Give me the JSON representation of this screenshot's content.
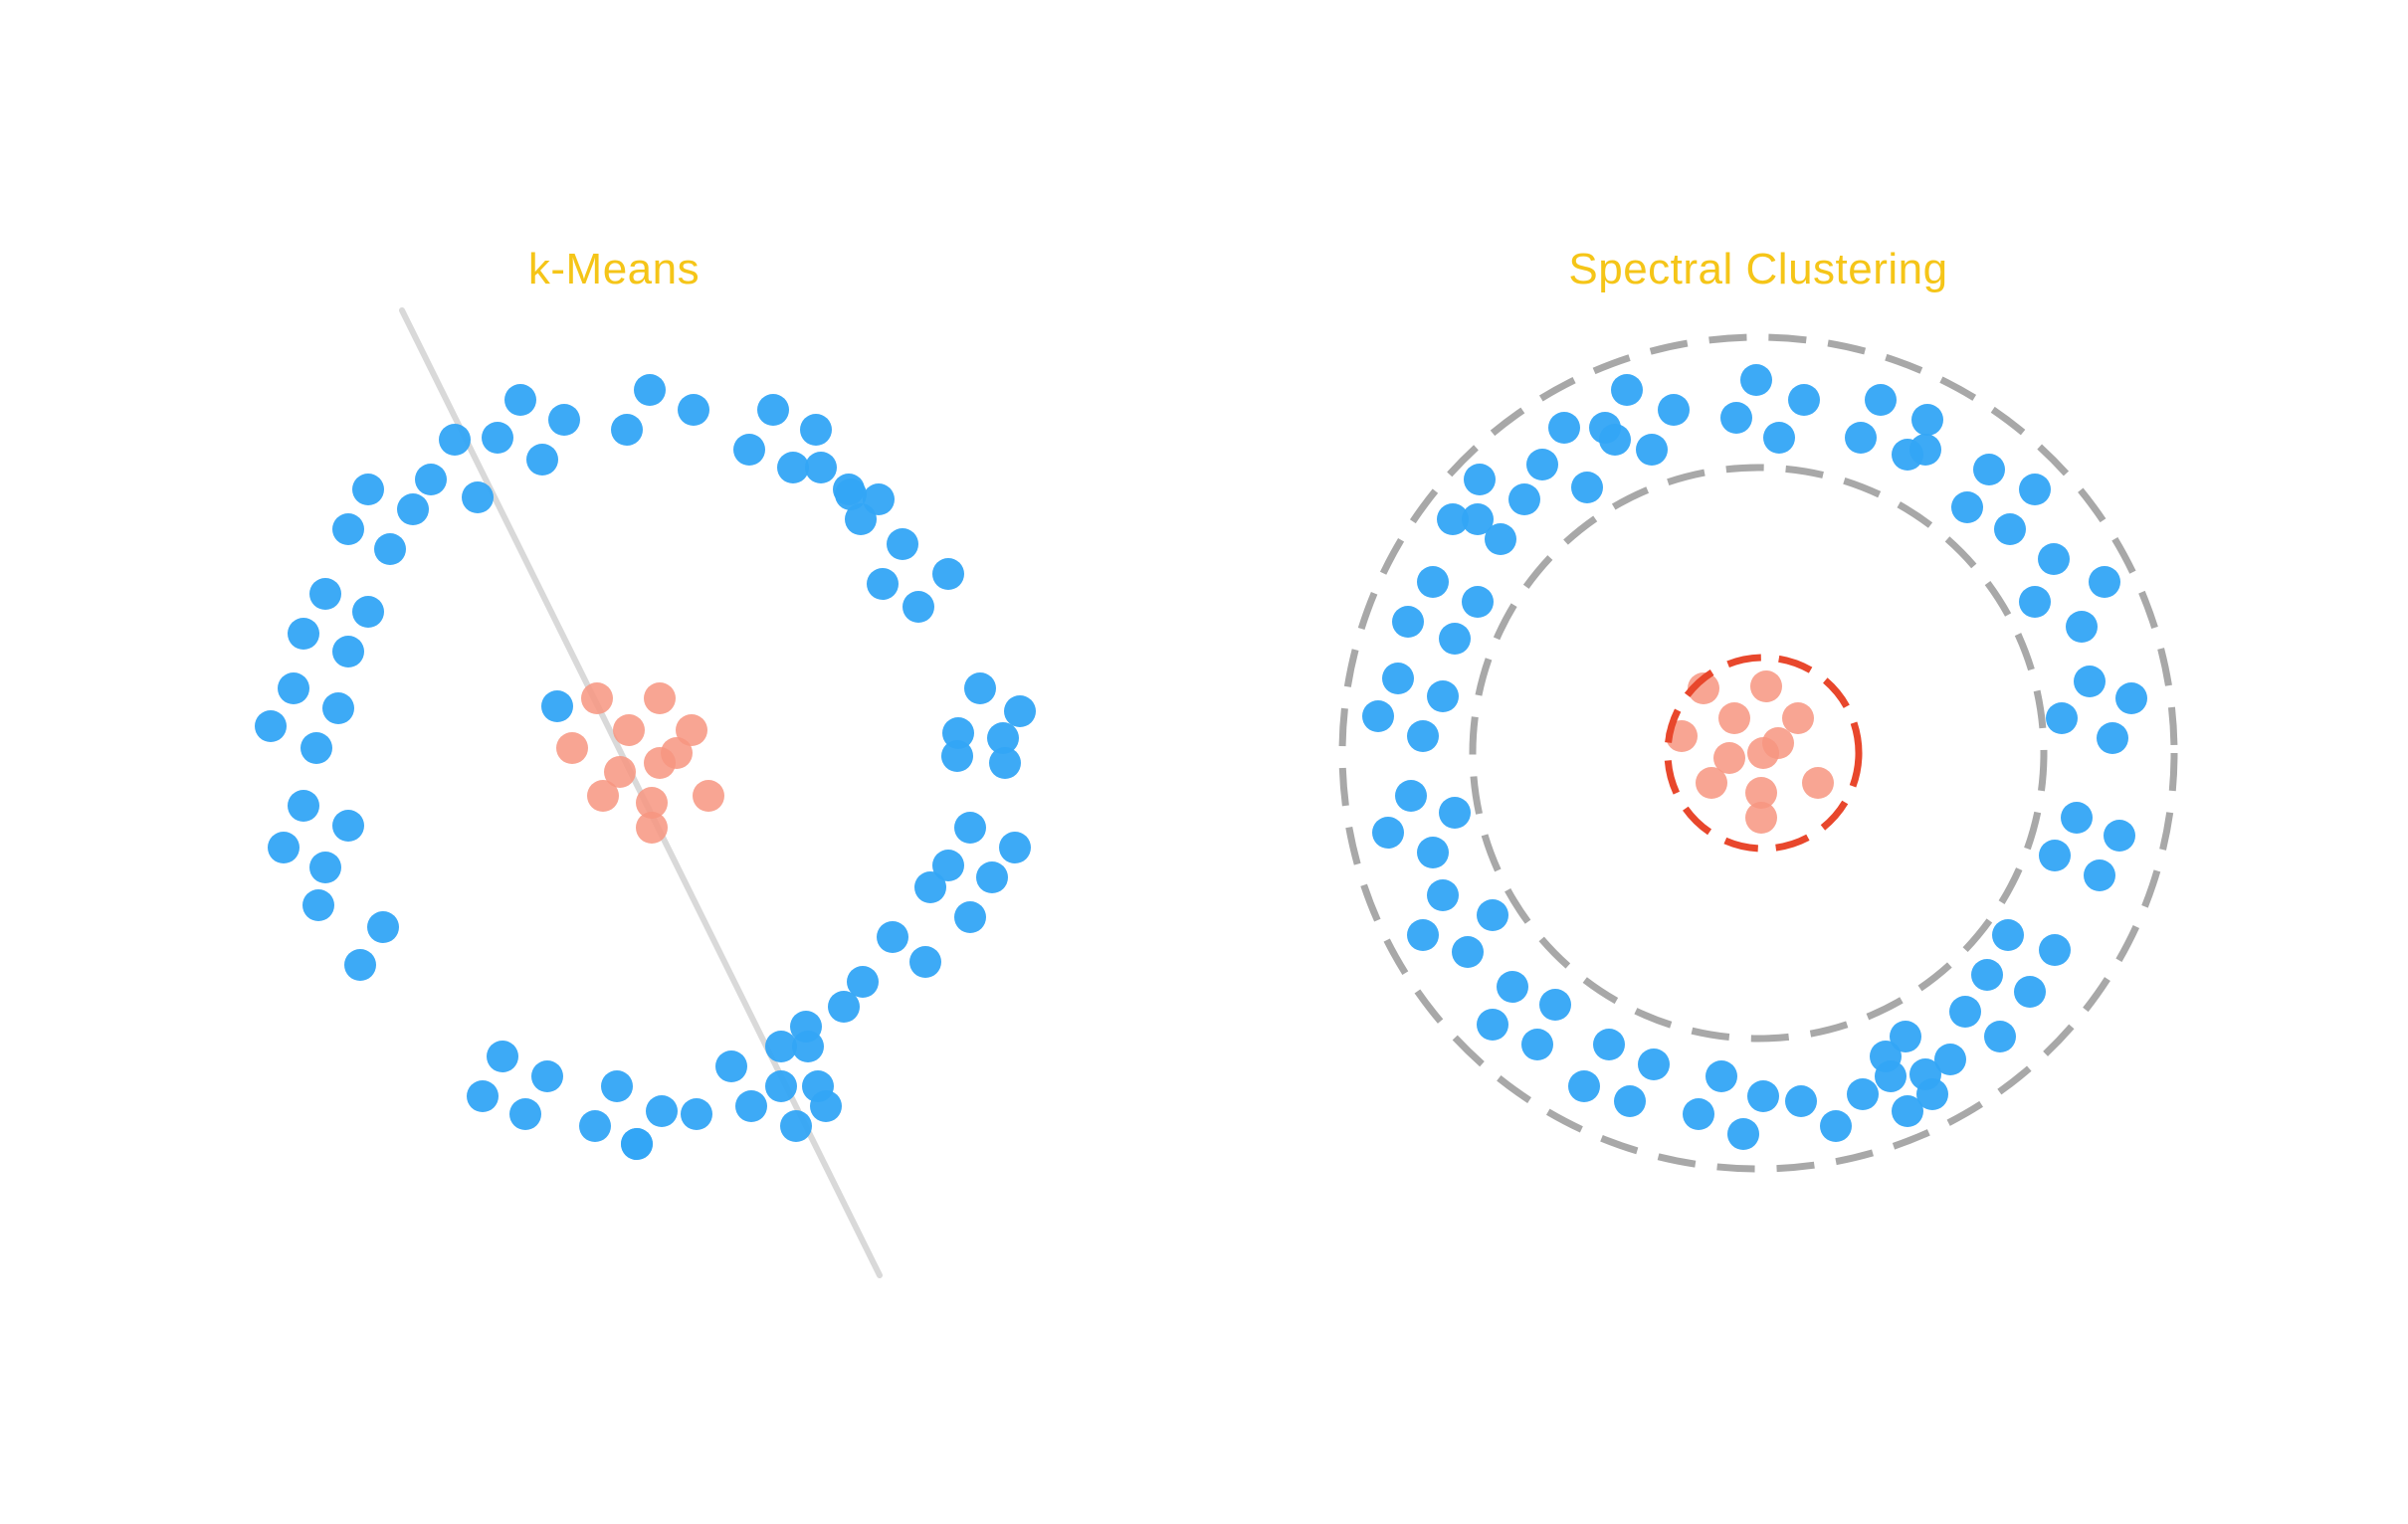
{
  "panels": {
    "left": {
      "title": "k-Means",
      "description": "two concentric point sets split by a straight linear boundary"
    },
    "right": {
      "title": "Spectral Clustering",
      "description": "outer ring and inner blob each enclosed by dashed circular cluster boundaries"
    }
  },
  "colors": {
    "title": "#F5C518",
    "outer_points": "#33A5F5",
    "inner_points": "#F79580",
    "kmeans_boundary": "#D9D9D9",
    "ring_boundary": "#A8A8A8",
    "inner_boundary": "#E8472C",
    "background": "#FFFFFF"
  },
  "icons": {
    "point": "filled-circle",
    "boundary_line": "straight-line",
    "ring_boundary": "dashed-circle"
  }
}
